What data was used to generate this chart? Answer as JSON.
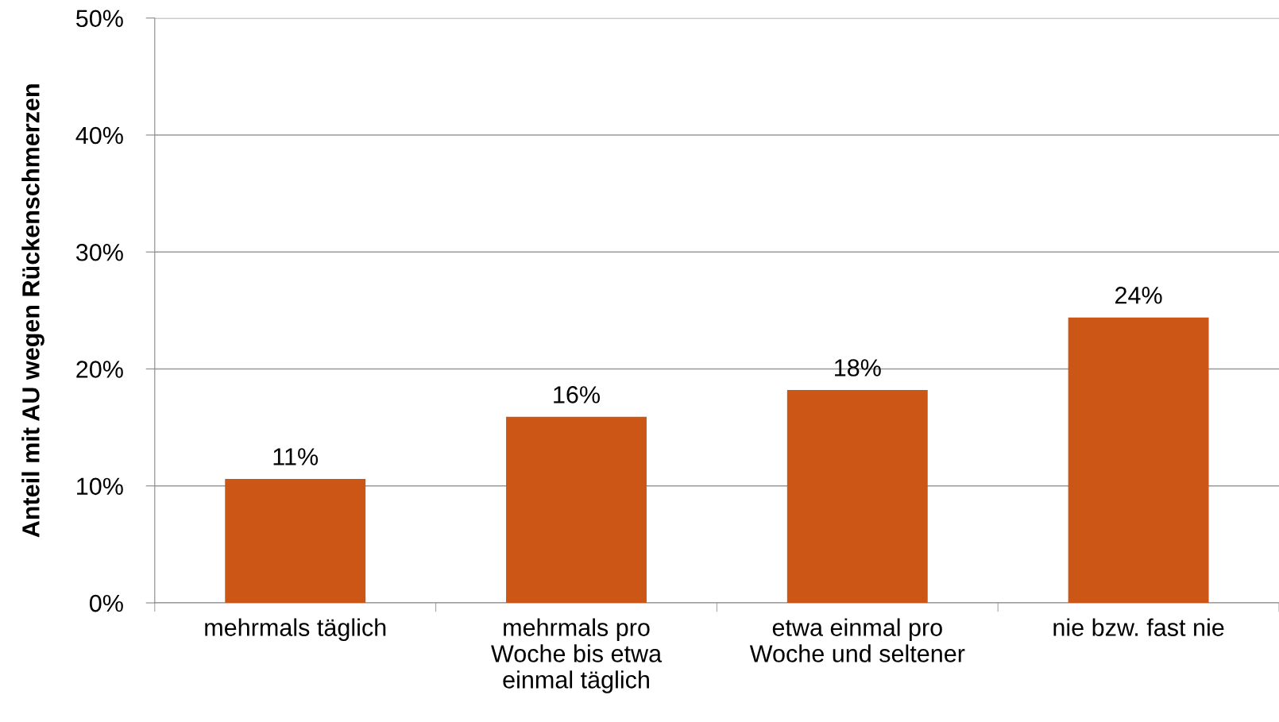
{
  "chart_data": {
    "type": "bar",
    "ylabel": "Anteil mit AU wegen Rückenschmerzen",
    "categories": [
      "mehrmals täglich",
      "mehrmals pro\nWoche bis etwa\neinmal täglich",
      "etwa einmal pro\nWoche und seltener",
      "nie bzw. fast nie"
    ],
    "values": [
      10.6,
      15.9,
      18.2,
      24.4
    ],
    "value_labels": [
      "11%",
      "16%",
      "18%",
      "24%"
    ],
    "color": "#cc5615",
    "ylim": [
      0,
      50
    ],
    "yticks": [
      {
        "value": 0,
        "label": "0%"
      },
      {
        "value": 10,
        "label": "10%"
      },
      {
        "value": 20,
        "label": "20%"
      },
      {
        "value": 30,
        "label": "30%"
      },
      {
        "value": 40,
        "label": "40%"
      },
      {
        "value": 50,
        "label": "50%"
      }
    ],
    "grid": "y"
  }
}
